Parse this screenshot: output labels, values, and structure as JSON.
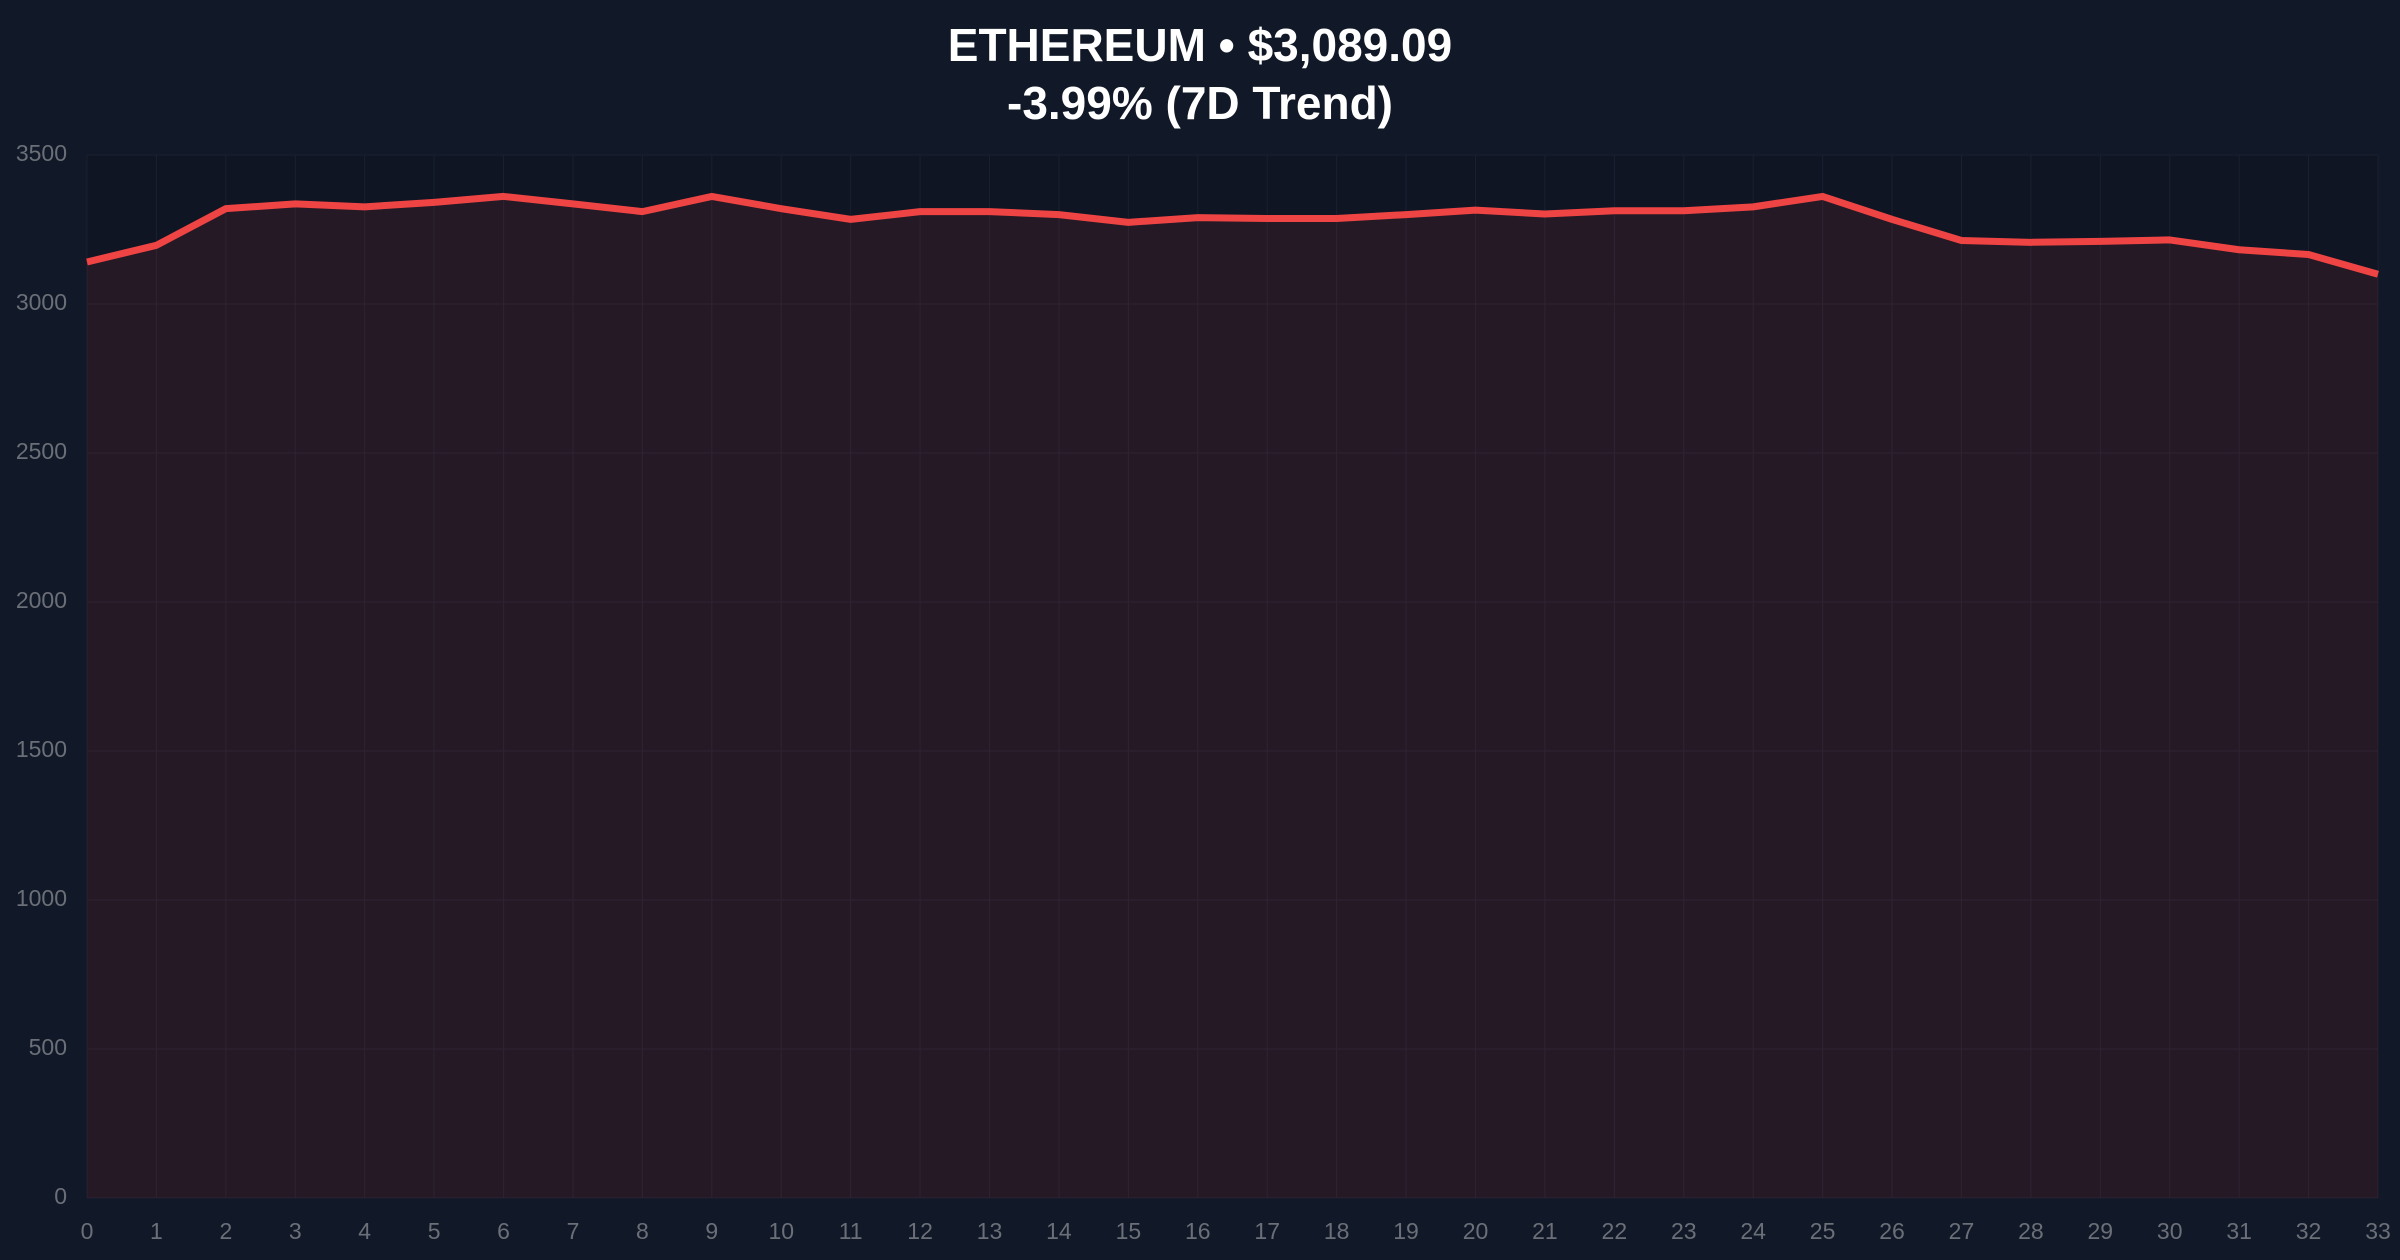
{
  "chart_data": {
    "type": "area",
    "title": "ETHEREUM • $3,089.09",
    "subtitle": "-3.99% (7D Trend)",
    "x": [
      0,
      1,
      2,
      3,
      4,
      5,
      6,
      7,
      8,
      9,
      10,
      11,
      12,
      13,
      14,
      15,
      16,
      17,
      18,
      19,
      20,
      21,
      22,
      23,
      24,
      25,
      26,
      27,
      28,
      29,
      30,
      31,
      32,
      33
    ],
    "series": [
      {
        "color": "#ef4444",
        "values": [
          3141,
          3197,
          3320,
          3336,
          3326,
          3341,
          3361,
          3336,
          3310,
          3361,
          3320,
          3284,
          3310,
          3310,
          3300,
          3274,
          3290,
          3287,
          3287,
          3300,
          3315,
          3302,
          3313,
          3313,
          3326,
          3361,
          3284,
          3213,
          3207,
          3210,
          3215,
          3182,
          3166,
          3100
        ]
      }
    ],
    "xlim": [
      0,
      33
    ],
    "xticks": [
      0,
      1,
      2,
      3,
      4,
      5,
      6,
      7,
      8,
      9,
      10,
      11,
      12,
      13,
      14,
      15,
      16,
      17,
      18,
      19,
      20,
      21,
      22,
      23,
      24,
      25,
      26,
      27,
      28,
      29,
      30,
      31,
      32,
      33
    ],
    "ylim": [
      0,
      3500
    ],
    "yticks": [
      0,
      500,
      1000,
      1500,
      2000,
      2500,
      3000,
      3500
    ],
    "grid": true
  }
}
